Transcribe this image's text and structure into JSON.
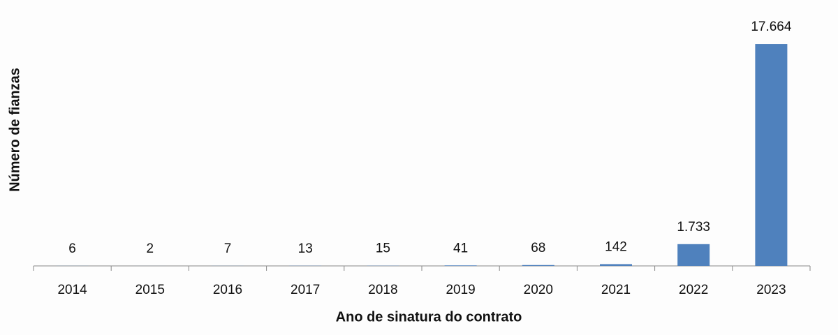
{
  "chart_data": {
    "type": "bar",
    "x_label": "Ano de sinatura do contrato",
    "y_label": "Número de fianzas",
    "categories": [
      "2014",
      "2015",
      "2016",
      "2017",
      "2018",
      "2019",
      "2020",
      "2021",
      "2022",
      "2023"
    ],
    "values": [
      6,
      2,
      7,
      13,
      15,
      41,
      68,
      142,
      1733,
      17664
    ],
    "value_labels": [
      "6",
      "2",
      "7",
      "13",
      "15",
      "41",
      "68",
      "142",
      "1.733",
      "17.664"
    ],
    "color": "#4f81bd",
    "ylim": [
      0,
      20000
    ]
  }
}
